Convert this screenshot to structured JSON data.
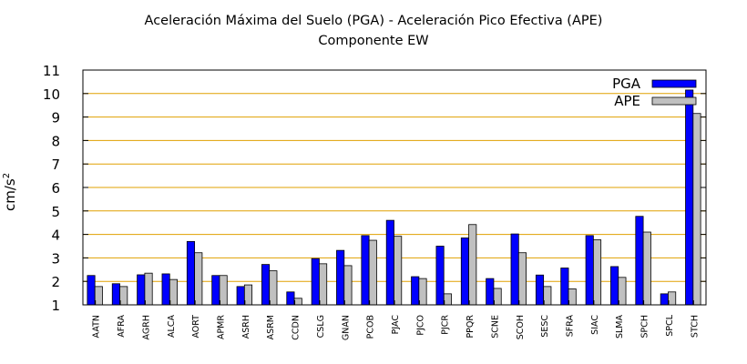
{
  "chart_data": {
    "type": "bar",
    "title": "Aceleración Máxima del Suelo (PGA) -  Aceleración Pico Efectiva (APE)",
    "subtitle": "Componente EW",
    "ylabel_base": "cm/s",
    "ylabel_exp": "2",
    "xlabel": "",
    "ylim": [
      1,
      11
    ],
    "yticks": [
      1,
      2,
      3,
      4,
      5,
      6,
      7,
      8,
      9,
      10,
      11
    ],
    "grid": true,
    "legend_position": "top-right",
    "categories": [
      "AATN",
      "AFRA",
      "AGRH",
      "ALCA",
      "AORT",
      "APMR",
      "ASRH",
      "ASRM",
      "CCDN",
      "CSLG",
      "GNAN",
      "PCOB",
      "PJAC",
      "PJCO",
      "PJCR",
      "PPQR",
      "SCNE",
      "SCOH",
      "SESC",
      "SFRA",
      "SIAC",
      "SLMA",
      "SPCH",
      "SPCL",
      "STCH"
    ],
    "series": [
      {
        "name": "PGA",
        "color": "#0000ff",
        "values": [
          2.25,
          1.9,
          2.28,
          2.32,
          3.7,
          2.25,
          1.78,
          2.72,
          1.55,
          2.97,
          3.32,
          3.95,
          4.6,
          2.2,
          3.5,
          3.85,
          2.12,
          4.02,
          2.27,
          2.57,
          3.95,
          2.63,
          4.77,
          1.47,
          10.15
        ]
      },
      {
        "name": "APE",
        "color": "#c0c0c0",
        "values": [
          1.78,
          1.78,
          2.35,
          2.08,
          3.22,
          2.25,
          1.85,
          2.45,
          1.28,
          2.75,
          2.67,
          3.75,
          3.92,
          2.12,
          1.47,
          4.42,
          1.7,
          3.22,
          1.78,
          1.68,
          3.77,
          2.17,
          4.1,
          1.55,
          9.15
        ]
      }
    ]
  }
}
